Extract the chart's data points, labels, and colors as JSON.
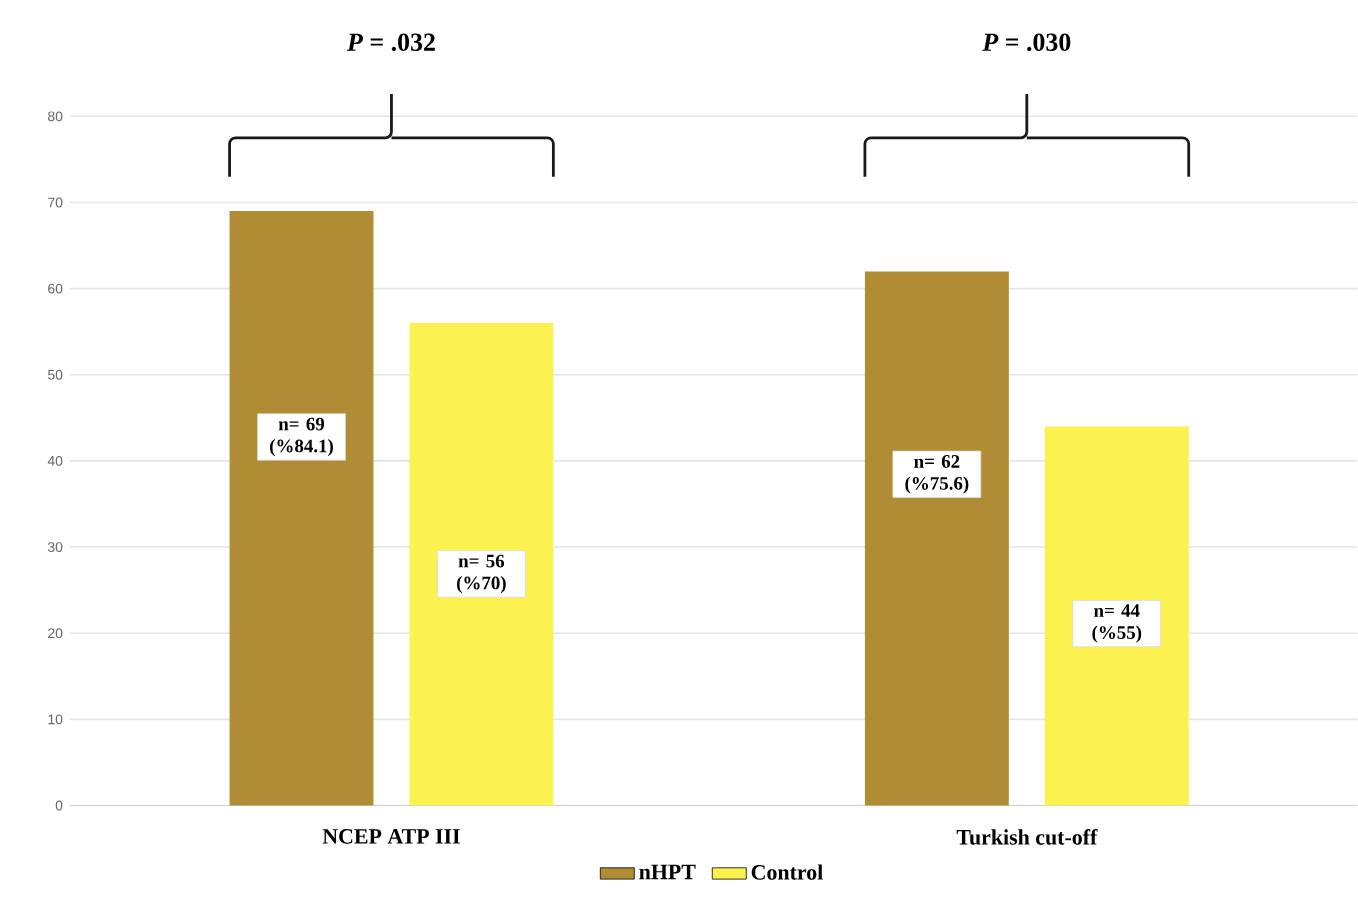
{
  "chart_data": {
    "type": "bar",
    "categories": [
      "NCEP ATP III",
      "Turkish cut-off"
    ],
    "series": [
      {
        "name": "nHPT",
        "color": "#b08d35",
        "values": [
          69,
          62
        ],
        "value_labels": [
          "n= 69 (%84.1)",
          "n= 62 (%75.6)"
        ]
      },
      {
        "name": "Control",
        "color": "#fcf24f",
        "values": [
          56,
          44
        ],
        "value_labels": [
          "n= 56 (%70)",
          "n= 44 (%55)"
        ]
      }
    ],
    "ylim": [
      0,
      80
    ],
    "yticks": [
      0,
      10,
      20,
      30,
      40,
      50,
      60,
      70,
      80
    ],
    "grid": "y",
    "legend": "bottom",
    "annotations": [
      "*P* = .032",
      "*P* = .030"
    ]
  }
}
